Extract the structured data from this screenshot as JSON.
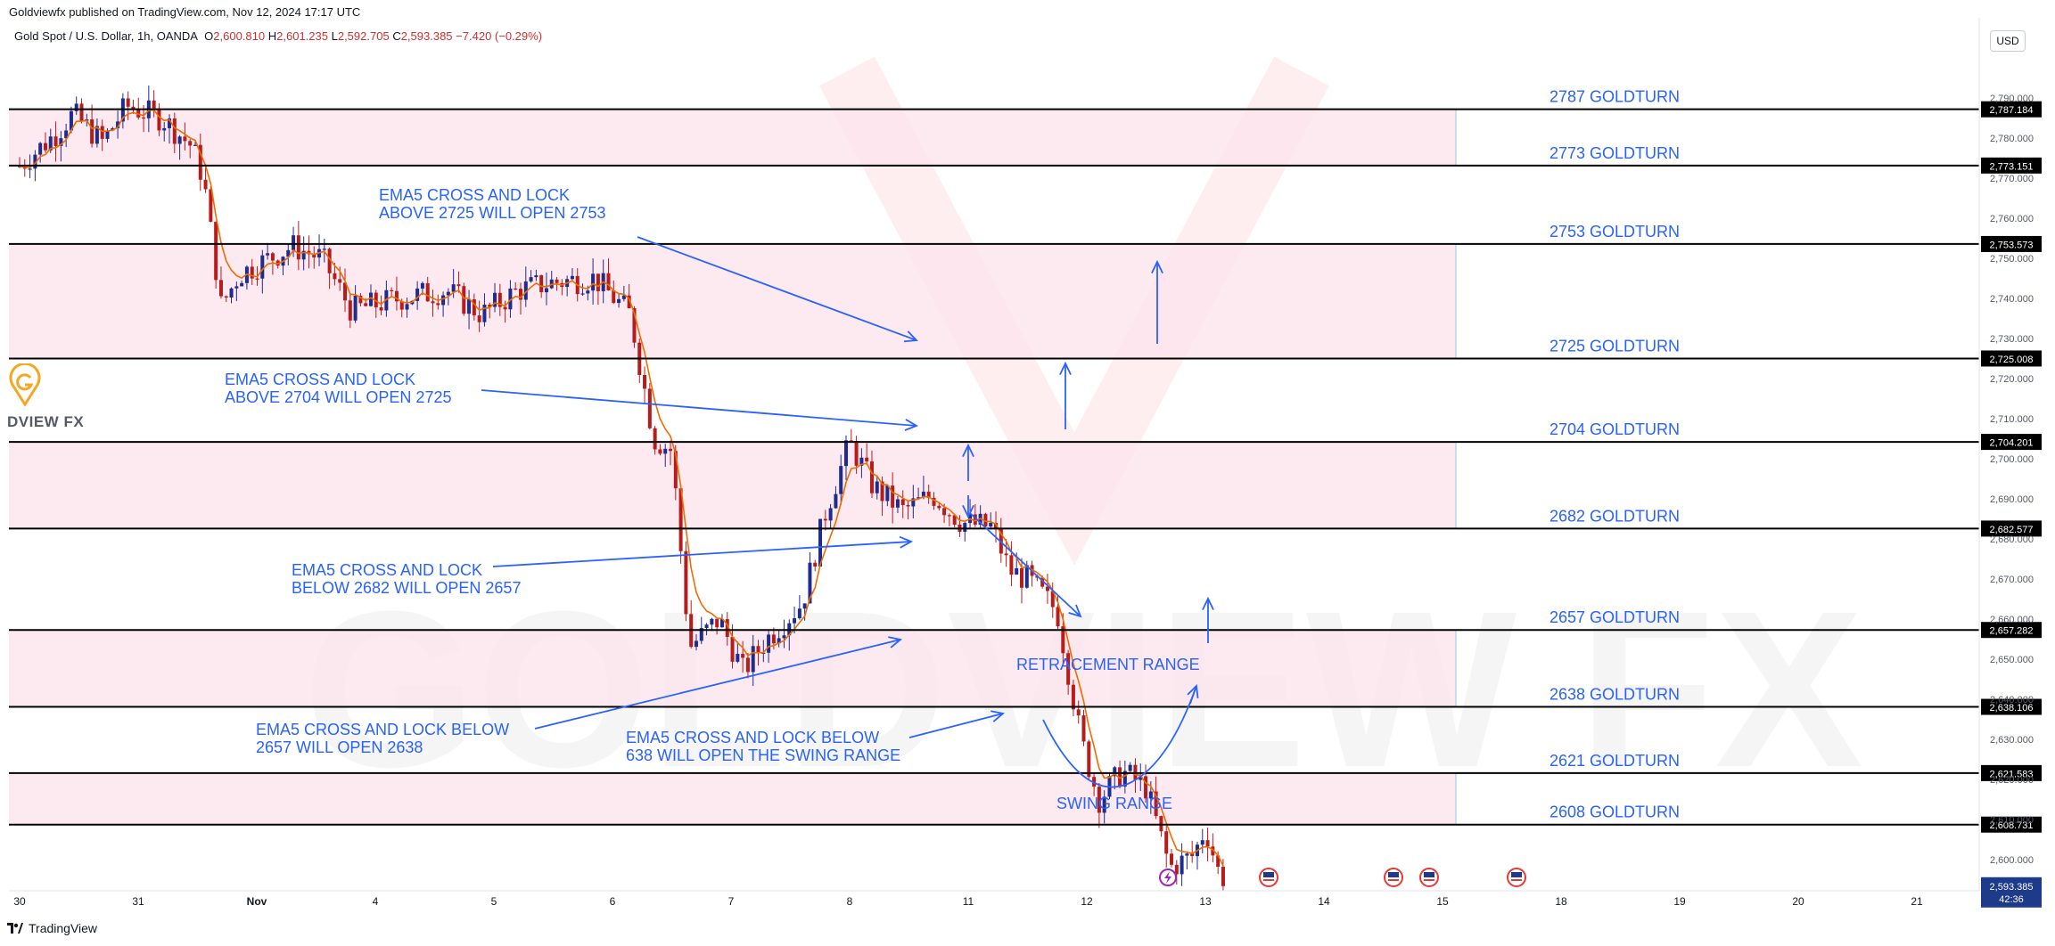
{
  "header": {
    "publisher": "Goldviewfx published on TradingView.com, Nov 12, 2024 17:17 UTC",
    "symbol": "Gold Spot / U.S. Dollar, 1h, OANDA",
    "open_label": "O",
    "open": "2,600.810",
    "high_label": "H",
    "high": "2,601.235",
    "low_label": "L",
    "low": "2,592.705",
    "close_label": "C",
    "close": "2,593.385",
    "change": "−7.420 (−0.29%)",
    "currency": "USD"
  },
  "footer": {
    "brand": "TradingView"
  },
  "brand": {
    "text": "DVIEW FX",
    "watermark": "GOLDVIEW FX"
  },
  "colors": {
    "candle_up": "#1e2b8f",
    "candle_down": "#b71c1c",
    "ema": "#ef6c00",
    "zone_fill": "#fce4ec",
    "annotation": "#2962ff",
    "level_line": "#000000"
  },
  "chart_data": {
    "type": "candlestick",
    "title": "Gold Spot / U.S. Dollar, 1h, OANDA",
    "x_ticks": [
      "30",
      "31",
      "Nov",
      "4",
      "5",
      "6",
      "7",
      "8",
      "11",
      "12",
      "13",
      "14",
      "15",
      "18",
      "19",
      "20",
      "21"
    ],
    "y_ticks": [
      2600,
      2610,
      2620,
      2630,
      2640,
      2650,
      2660,
      2670,
      2680,
      2690,
      2700,
      2710,
      2720,
      2730,
      2740,
      2750,
      2760,
      2770,
      2780,
      2790
    ],
    "ylim": [
      2588,
      2797
    ],
    "price_path": [
      {
        "t": 0,
        "p": 2773
      },
      {
        "t": 0.3,
        "p": 2781
      },
      {
        "t": 0.45,
        "p": 2786
      },
      {
        "t": 0.7,
        "p": 2779
      },
      {
        "t": 0.9,
        "p": 2788
      },
      {
        "t": 1.2,
        "p": 2785
      },
      {
        "t": 1.45,
        "p": 2778
      },
      {
        "t": 1.55,
        "p": 2770
      },
      {
        "t": 1.7,
        "p": 2738
      },
      {
        "t": 1.85,
        "p": 2746
      },
      {
        "t": 2.3,
        "p": 2753
      },
      {
        "t": 2.55,
        "p": 2750
      },
      {
        "t": 2.8,
        "p": 2737
      },
      {
        "t": 3.2,
        "p": 2740
      },
      {
        "t": 3.6,
        "p": 2742
      },
      {
        "t": 3.9,
        "p": 2736
      },
      {
        "t": 4.2,
        "p": 2742
      },
      {
        "t": 4.5,
        "p": 2744
      },
      {
        "t": 4.85,
        "p": 2745
      },
      {
        "t": 5.15,
        "p": 2736
      },
      {
        "t": 5.35,
        "p": 2705
      },
      {
        "t": 5.5,
        "p": 2702
      },
      {
        "t": 5.65,
        "p": 2653
      },
      {
        "t": 5.9,
        "p": 2660
      },
      {
        "t": 6.1,
        "p": 2647
      },
      {
        "t": 6.3,
        "p": 2655
      },
      {
        "t": 6.6,
        "p": 2664
      },
      {
        "t": 6.8,
        "p": 2687
      },
      {
        "t": 7.0,
        "p": 2704
      },
      {
        "t": 7.2,
        "p": 2693
      },
      {
        "t": 7.45,
        "p": 2687
      },
      {
        "t": 7.7,
        "p": 2691
      },
      {
        "t": 7.95,
        "p": 2684
      },
      {
        "t": 8.2,
        "p": 2683
      },
      {
        "t": 8.35,
        "p": 2672
      },
      {
        "t": 8.5,
        "p": 2670
      },
      {
        "t": 8.75,
        "p": 2662
      },
      {
        "t": 8.95,
        "p": 2630
      },
      {
        "t": 9.1,
        "p": 2615
      },
      {
        "t": 9.3,
        "p": 2622
      },
      {
        "t": 9.5,
        "p": 2618
      },
      {
        "t": 9.7,
        "p": 2598
      },
      {
        "t": 9.9,
        "p": 2601
      },
      {
        "t": 10.0,
        "p": 2608
      },
      {
        "t": 10.15,
        "p": 2593
      }
    ],
    "current_price": {
      "value": 2593.385,
      "label": "2,593.385",
      "countdown": "42:36"
    },
    "levels": [
      {
        "value": 2787.184,
        "price_label": "2,787.184",
        "text": "2787 GOLDTURN"
      },
      {
        "value": 2773.151,
        "price_label": "2,773.151",
        "text": "2773 GOLDTURN"
      },
      {
        "value": 2753.573,
        "price_label": "2,753.573",
        "text": "2753 GOLDTURN"
      },
      {
        "value": 2725.008,
        "price_label": "2,725.008",
        "text": "2725 GOLDTURN"
      },
      {
        "value": 2704.201,
        "price_label": "2,704.201",
        "text": "2704 GOLDTURN"
      },
      {
        "value": 2682.577,
        "price_label": "2,682.577",
        "text": "2682 GOLDTURN"
      },
      {
        "value": 2657.282,
        "price_label": "2,657.282",
        "text": "2657 GOLDTURN"
      },
      {
        "value": 2638.106,
        "price_label": "2,638.106",
        "text": "2638 GOLDTURN"
      },
      {
        "value": 2621.583,
        "price_label": "2,621.583",
        "text": "2621 GOLDTURN"
      },
      {
        "value": 2608.731,
        "price_label": "2,608.731",
        "text": "2608 GOLDTURN"
      }
    ],
    "zones": [
      {
        "from": 2773.151,
        "to": 2787.184
      },
      {
        "from": 2725.008,
        "to": 2753.573
      },
      {
        "from": 2682.577,
        "to": 2704.201
      },
      {
        "from": 2638.106,
        "to": 2657.282
      },
      {
        "from": 2608.731,
        "to": 2621.583
      }
    ],
    "annotations": [
      {
        "lines": [
          "EMA5 CROSS AND LOCK",
          "ABOVE 2725 WILL OPEN 2753"
        ]
      },
      {
        "lines": [
          "EMA5 CROSS AND LOCK",
          "ABOVE 2704 WILL OPEN 2725"
        ]
      },
      {
        "lines": [
          "EMA5 CROSS AND LOCK",
          "BELOW 2682 WILL OPEN 2657"
        ]
      },
      {
        "lines": [
          "EMA5 CROSS AND LOCK BELOW",
          "2657 WILL OPEN 2638"
        ]
      },
      {
        "lines": [
          "EMA5 CROSS AND LOCK BELOW",
          "638 WILL OPEN THE SWING RANGE"
        ]
      },
      {
        "lines": [
          "RETRACEMENT RANGE"
        ]
      },
      {
        "lines": [
          "SWING RANGE"
        ]
      }
    ],
    "event_icons": [
      {
        "date": "13"
      },
      {
        "date": "14"
      },
      {
        "date": "14"
      },
      {
        "date": "15"
      }
    ],
    "grid": false
  }
}
